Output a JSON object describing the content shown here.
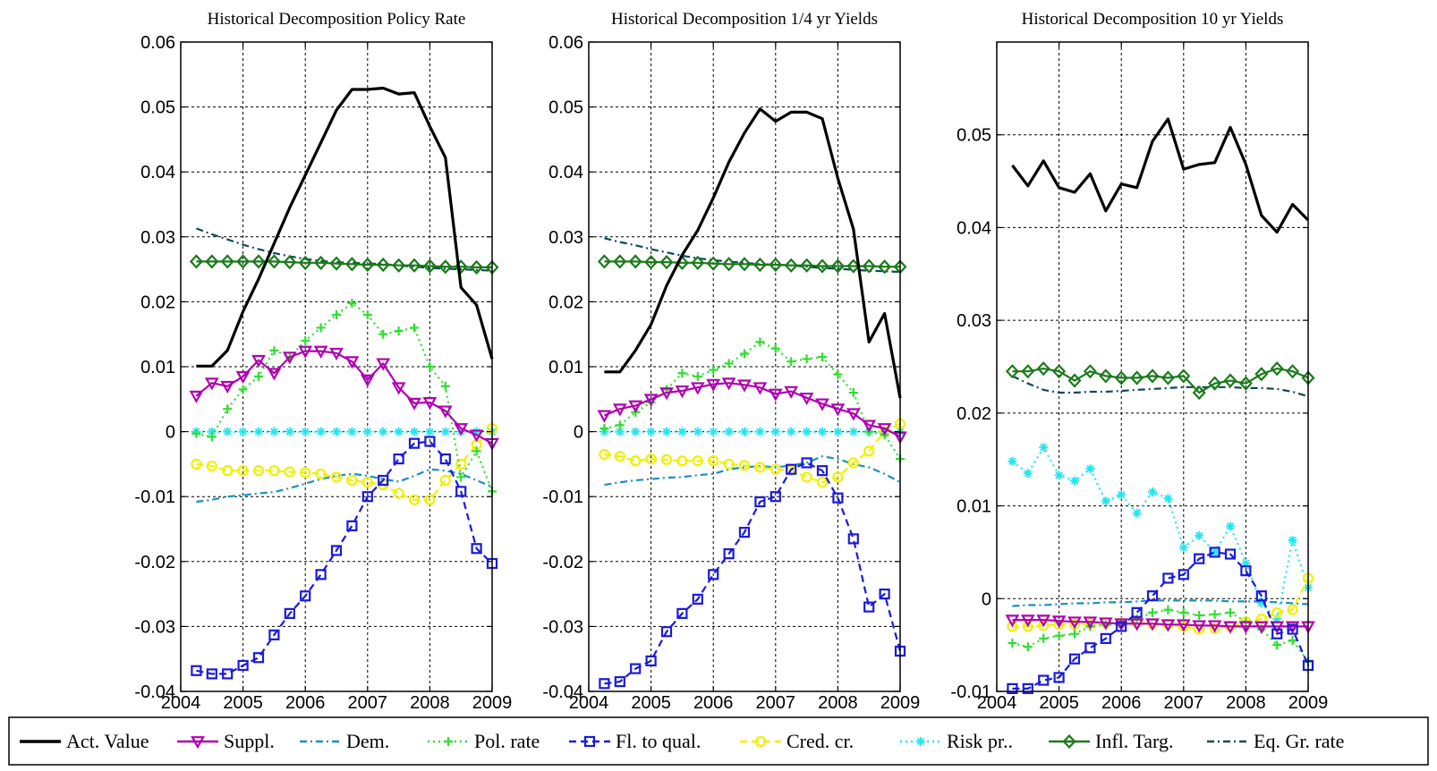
{
  "chart_data": [
    {
      "type": "line",
      "title": "Historical Decomposition Policy Rate",
      "xlim": [
        2004,
        2009
      ],
      "ylim": [
        -0.04,
        0.06
      ],
      "xticks": [
        "2004",
        "2005",
        "2006",
        "2007",
        "2008",
        "2009"
      ],
      "yticks": [
        "-0.04",
        "-0.03",
        "-0.02",
        "-0.01",
        "0",
        "0.01",
        "0.02",
        "0.03",
        "0.04",
        "0.05",
        "0.06"
      ],
      "yticks_values": [
        -0.04,
        -0.03,
        -0.02,
        -0.01,
        0,
        0.01,
        0.02,
        0.03,
        0.04,
        0.05,
        0.06
      ],
      "grid": true,
      "x": [
        2004.25,
        2004.5,
        2004.75,
        2005,
        2005.25,
        2005.5,
        2005.75,
        2006,
        2006.25,
        2006.5,
        2006.75,
        2007,
        2007.25,
        2007.5,
        2007.75,
        2008,
        2008.25,
        2008.5,
        2008.75,
        2009
      ],
      "series": [
        {
          "key": "act",
          "values": [
            0.0101,
            0.0101,
            0.0125,
            0.0185,
            0.0235,
            0.029,
            0.0345,
            0.0395,
            0.0445,
            0.0495,
            0.0527,
            0.0527,
            0.0529,
            0.052,
            0.0522,
            0.047,
            0.0422,
            0.0222,
            0.0195,
            0.0112
          ]
        },
        {
          "key": "suppl",
          "values": [
            0.0055,
            0.0075,
            0.007,
            0.0085,
            0.011,
            0.009,
            0.0115,
            0.0124,
            0.0124,
            0.0121,
            0.0108,
            0.008,
            0.0105,
            0.0068,
            0.0044,
            0.0045,
            0.0032,
            0.0005,
            -0.0005,
            -0.0018
          ]
        },
        {
          "key": "dem",
          "values": [
            -0.0108,
            -0.0105,
            -0.01,
            -0.0098,
            -0.0095,
            -0.0093,
            -0.0087,
            -0.008,
            -0.0073,
            -0.0068,
            -0.0065,
            -0.0068,
            -0.0073,
            -0.0077,
            -0.0068,
            -0.0058,
            -0.006,
            -0.0065,
            -0.0075,
            -0.0085
          ]
        },
        {
          "key": "pol",
          "values": [
            -0.0003,
            -0.0008,
            0.0035,
            0.0065,
            0.0085,
            0.0125,
            0.0115,
            0.014,
            0.016,
            0.018,
            0.0198,
            0.018,
            0.015,
            0.0155,
            0.016,
            0.01,
            0.007,
            -0.007,
            -0.003,
            -0.0092
          ]
        },
        {
          "key": "fl",
          "values": [
            -0.0368,
            -0.0373,
            -0.0373,
            -0.036,
            -0.0348,
            -0.0313,
            -0.028,
            -0.0253,
            -0.022,
            -0.0183,
            -0.0145,
            -0.01,
            -0.0075,
            -0.0042,
            -0.0018,
            -0.0015,
            -0.0042,
            -0.0092,
            -0.018,
            -0.0203
          ]
        },
        {
          "key": "cred",
          "values": [
            -0.005,
            -0.0053,
            -0.006,
            -0.006,
            -0.006,
            -0.006,
            -0.0062,
            -0.0063,
            -0.0065,
            -0.007,
            -0.0075,
            -0.0078,
            -0.0082,
            -0.0095,
            -0.0105,
            -0.0105,
            -0.0075,
            -0.005,
            -0.002,
            0.0005
          ]
        },
        {
          "key": "risk",
          "values": [
            0,
            0,
            0,
            0,
            0,
            0,
            0,
            0,
            0,
            0,
            0,
            0,
            0,
            0,
            0,
            0,
            0,
            0,
            0,
            0
          ]
        },
        {
          "key": "infl",
          "values": [
            0.0262,
            0.0262,
            0.0262,
            0.0262,
            0.0262,
            0.0262,
            0.0261,
            0.026,
            0.026,
            0.0259,
            0.0258,
            0.0257,
            0.0257,
            0.0256,
            0.0256,
            0.0255,
            0.0254,
            0.0254,
            0.0253,
            0.0253
          ]
        },
        {
          "key": "eqgr",
          "values": [
            0.0313,
            0.0304,
            0.0296,
            0.0288,
            0.0281,
            0.0275,
            0.027,
            0.0266,
            0.0263,
            0.0261,
            0.026,
            0.0259,
            0.0258,
            0.0256,
            0.0254,
            0.0252,
            0.0251,
            0.025,
            0.0249,
            0.0248
          ]
        }
      ]
    },
    {
      "type": "line",
      "title": "Historical Decomposition 1/4 yr Yields",
      "xlim": [
        2004,
        2009
      ],
      "ylim": [
        -0.04,
        0.06
      ],
      "xticks": [
        "2004",
        "2005",
        "2006",
        "2007",
        "2008",
        "2009"
      ],
      "yticks": [
        "-0.04",
        "-0.03",
        "-0.02",
        "-0.01",
        "0",
        "0.01",
        "0.02",
        "0.03",
        "0.04",
        "0.05",
        "0.06"
      ],
      "yticks_values": [
        -0.04,
        -0.03,
        -0.02,
        -0.01,
        0,
        0.01,
        0.02,
        0.03,
        0.04,
        0.05,
        0.06
      ],
      "grid": true,
      "x": [
        2004.25,
        2004.5,
        2004.75,
        2005,
        2005.25,
        2005.5,
        2005.75,
        2006,
        2006.25,
        2006.5,
        2006.75,
        2007,
        2007.25,
        2007.5,
        2007.75,
        2008,
        2008.25,
        2008.5,
        2008.75,
        2009
      ],
      "series": [
        {
          "key": "act",
          "values": [
            0.0092,
            0.0092,
            0.0125,
            0.0165,
            0.0225,
            0.0272,
            0.031,
            0.036,
            0.0415,
            0.046,
            0.0497,
            0.0478,
            0.0492,
            0.0492,
            0.0482,
            0.039,
            0.0312,
            0.0138,
            0.0182,
            0.0052
          ]
        },
        {
          "key": "suppl",
          "values": [
            0.0025,
            0.0035,
            0.004,
            0.005,
            0.006,
            0.0063,
            0.0068,
            0.0073,
            0.0075,
            0.0072,
            0.0068,
            0.0058,
            0.0062,
            0.0052,
            0.0043,
            0.0035,
            0.0028,
            0.001,
            0.0005,
            -0.0008
          ]
        },
        {
          "key": "dem",
          "values": [
            -0.0082,
            -0.0078,
            -0.0075,
            -0.0073,
            -0.0071,
            -0.007,
            -0.0067,
            -0.0065,
            -0.0058,
            -0.0055,
            -0.0053,
            -0.0055,
            -0.0052,
            -0.0048,
            -0.0038,
            -0.0042,
            -0.005,
            -0.0055,
            -0.0065,
            -0.0078
          ]
        },
        {
          "key": "pol",
          "values": [
            0.0005,
            0.001,
            0.003,
            0.0045,
            0.0065,
            0.009,
            0.0085,
            0.0095,
            0.0105,
            0.012,
            0.0138,
            0.0128,
            0.0108,
            0.0112,
            0.0115,
            0.0088,
            0.006,
            0.0,
            -0.0005,
            -0.0042
          ]
        },
        {
          "key": "fl",
          "values": [
            -0.0388,
            -0.0385,
            -0.0365,
            -0.0353,
            -0.0308,
            -0.028,
            -0.0258,
            -0.022,
            -0.0188,
            -0.0155,
            -0.0108,
            -0.01,
            -0.0058,
            -0.0048,
            -0.006,
            -0.0102,
            -0.0165,
            -0.027,
            -0.025,
            -0.0338
          ]
        },
        {
          "key": "cred",
          "values": [
            -0.0035,
            -0.0038,
            -0.0045,
            -0.0042,
            -0.0043,
            -0.0045,
            -0.0045,
            -0.0045,
            -0.005,
            -0.0052,
            -0.0055,
            -0.0058,
            -0.006,
            -0.007,
            -0.0078,
            -0.007,
            -0.0048,
            -0.003,
            0,
            0.0012
          ]
        },
        {
          "key": "risk",
          "values": [
            0,
            0,
            0,
            0,
            0,
            0,
            0,
            0,
            0,
            0,
            0,
            0,
            0,
            0,
            0,
            0,
            0,
            0,
            0,
            0
          ]
        },
        {
          "key": "infl",
          "values": [
            0.0262,
            0.0262,
            0.0262,
            0.0261,
            0.0261,
            0.026,
            0.026,
            0.0259,
            0.0258,
            0.0258,
            0.0257,
            0.0257,
            0.0256,
            0.0256,
            0.0255,
            0.0255,
            0.0255,
            0.0255,
            0.0254,
            0.0254
          ]
        },
        {
          "key": "eqgr",
          "values": [
            0.0298,
            0.0292,
            0.0287,
            0.0281,
            0.0276,
            0.0271,
            0.0267,
            0.0264,
            0.0262,
            0.026,
            0.0258,
            0.0257,
            0.0256,
            0.0254,
            0.0252,
            0.0251,
            0.0249,
            0.0248,
            0.0247,
            0.0246
          ]
        }
      ]
    },
    {
      "type": "line",
      "title": "Historical Decomposition 10 yr Yields",
      "xlim": [
        2004,
        2009
      ],
      "ylim": [
        -0.01,
        0.06
      ],
      "xticks": [
        "2004",
        "2005",
        "2006",
        "2007",
        "2008",
        "2009"
      ],
      "yticks": [
        "-0.01",
        "0",
        "0.01",
        "0.02",
        "0.03",
        "0.04",
        "0.05"
      ],
      "yticks_values": [
        -0.01,
        0,
        0.01,
        0.02,
        0.03,
        0.04,
        0.05
      ],
      "grid": true,
      "x": [
        2004.25,
        2004.5,
        2004.75,
        2005,
        2005.25,
        2005.5,
        2005.75,
        2006,
        2006.25,
        2006.5,
        2006.75,
        2007,
        2007.25,
        2007.5,
        2007.75,
        2008,
        2008.25,
        2008.5,
        2008.75,
        2009
      ],
      "series": [
        {
          "key": "act",
          "values": [
            0.0467,
            0.0445,
            0.0472,
            0.0443,
            0.0438,
            0.0458,
            0.0418,
            0.0447,
            0.0443,
            0.0493,
            0.0517,
            0.0463,
            0.0468,
            0.047,
            0.0508,
            0.0468,
            0.0413,
            0.0395,
            0.0425,
            0.0408
          ]
        },
        {
          "key": "suppl",
          "values": [
            -0.0023,
            -0.0023,
            -0.0023,
            -0.0024,
            -0.0025,
            -0.0025,
            -0.0026,
            -0.0027,
            -0.0027,
            -0.0027,
            -0.0028,
            -0.0028,
            -0.0029,
            -0.0029,
            -0.003,
            -0.003,
            -0.003,
            -0.003,
            -0.003,
            -0.003
          ]
        },
        {
          "key": "dem",
          "values": [
            -0.0008,
            -0.0007,
            -0.0007,
            -0.0006,
            -0.0005,
            -0.0005,
            -0.0004,
            -0.0004,
            -0.0003,
            -0.0002,
            -0.0002,
            -0.0002,
            -0.0002,
            -0.0002,
            -0.0003,
            -0.0003,
            -0.0003,
            -0.0004,
            -0.0005,
            -0.0006
          ]
        },
        {
          "key": "pol",
          "values": [
            -0.0048,
            -0.0052,
            -0.0043,
            -0.004,
            -0.0038,
            -0.003,
            -0.0028,
            -0.0028,
            -0.0022,
            -0.0015,
            -0.0012,
            -0.0015,
            -0.0018,
            -0.0017,
            -0.0015,
            -0.0025,
            -0.0033,
            -0.005,
            -0.0045,
            -0.0068
          ]
        },
        {
          "key": "fl",
          "values": [
            -0.0097,
            -0.0097,
            -0.0088,
            -0.0085,
            -0.0065,
            -0.0053,
            -0.0043,
            -0.003,
            -0.0015,
            0.0003,
            0.0022,
            0.0026,
            0.0043,
            0.005,
            0.0048,
            0.003,
            0.0003,
            -0.0038,
            -0.0033,
            -0.0072
          ]
        },
        {
          "key": "cred",
          "values": [
            -0.003,
            -0.003,
            -0.0029,
            -0.0028,
            -0.0028,
            -0.0027,
            -0.0026,
            -0.0026,
            -0.0026,
            -0.0027,
            -0.0028,
            -0.003,
            -0.0033,
            -0.0032,
            -0.003,
            -0.0025,
            -0.0022,
            -0.0015,
            -0.0012,
            0.0022
          ]
        },
        {
          "key": "risk",
          "values": [
            0.0148,
            0.0135,
            0.0163,
            0.0133,
            0.0127,
            0.014,
            0.0105,
            0.0112,
            0.0092,
            0.0115,
            0.0108,
            0.0055,
            0.0068,
            0.005,
            0.0078,
            0.0038,
            -0.0005,
            -0.0022,
            0.0063,
            0.0012
          ]
        },
        {
          "key": "infl",
          "values": [
            0.0245,
            0.0245,
            0.0248,
            0.0245,
            0.0235,
            0.0245,
            0.024,
            0.0238,
            0.0238,
            0.024,
            0.0238,
            0.024,
            0.0222,
            0.0232,
            0.0235,
            0.0232,
            0.0242,
            0.0248,
            0.0245,
            0.0238
          ]
        },
        {
          "key": "eqgr",
          "values": [
            0.024,
            0.0232,
            0.0225,
            0.0222,
            0.0222,
            0.0223,
            0.0223,
            0.0224,
            0.0225,
            0.0226,
            0.0227,
            0.0228,
            0.0228,
            0.0228,
            0.0228,
            0.0227,
            0.0227,
            0.0226,
            0.0223,
            0.0218
          ]
        }
      ]
    }
  ],
  "legend": {
    "placement": "bottom",
    "entries": [
      {
        "key": "act",
        "label": "Act. Value",
        "color": "#000000",
        "marker": "none",
        "dash": "solid"
      },
      {
        "key": "suppl",
        "label": "Suppl.",
        "color": "#b000b0",
        "marker": "triangle-down",
        "dash": "solid"
      },
      {
        "key": "dem",
        "label": "Dem.",
        "color": "#1a8fc0",
        "marker": "none",
        "dash": "dashdot"
      },
      {
        "key": "pol",
        "label": "Pol. rate",
        "color": "#33dd33",
        "marker": "plus",
        "dash": "dotted"
      },
      {
        "key": "fl",
        "label": "Fl. to qual.",
        "color": "#1a1adc",
        "marker": "square",
        "dash": "dashed"
      },
      {
        "key": "cred",
        "label": "Cred. cr.",
        "color": "#f0f000",
        "marker": "circle",
        "dash": "dashed"
      },
      {
        "key": "risk",
        "label": "Risk pr..",
        "color": "#22e6f2",
        "marker": "asterisk",
        "dash": "dotted"
      },
      {
        "key": "infl",
        "label": "Infl. Targ.",
        "color": "#1a7a1a",
        "marker": "diamond",
        "dash": "solid"
      },
      {
        "key": "eqgr",
        "label": "Eq. Gr. rate",
        "color": "#0e4a52",
        "marker": "none",
        "dash": "dashdot"
      }
    ]
  }
}
